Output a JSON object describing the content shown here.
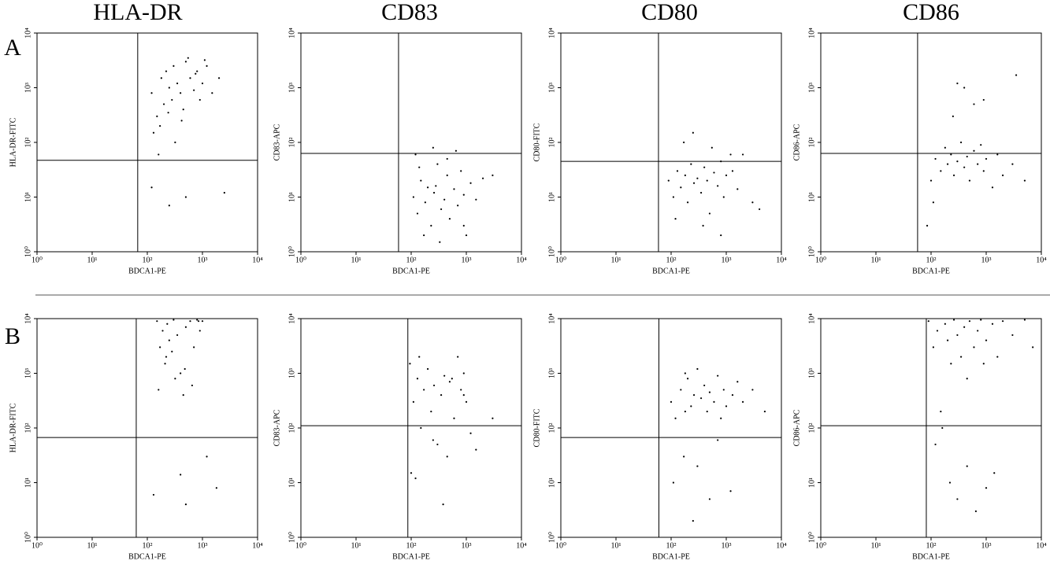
{
  "columns": [
    "HLA-DR",
    "CD83",
    "CD80",
    "CD86"
  ],
  "rows": [
    "A",
    "B"
  ],
  "chart_data": [
    {
      "type": "scatter",
      "xlabel": "BDCA1-PE",
      "ylabel": "HLA-DR-FITC",
      "log": true,
      "color": "#000000",
      "xlim": [
        1,
        10000
      ],
      "ylim": [
        1,
        10000
      ],
      "xticks": [
        {
          "value": 1,
          "label": "10⁰"
        },
        {
          "value": 10,
          "label": "10¹"
        },
        {
          "value": 100,
          "label": "10²"
        },
        {
          "value": 1000,
          "label": "10³"
        },
        {
          "value": 10000,
          "label": "10⁴"
        }
      ],
      "yticks": [
        {
          "value": 1,
          "label": "10⁰"
        },
        {
          "value": 10,
          "label": "10¹"
        },
        {
          "value": 100,
          "label": "10²"
        },
        {
          "value": 1000,
          "label": "10³"
        },
        {
          "value": 10000,
          "label": "10⁴"
        }
      ],
      "gate": {
        "x": 67,
        "y": 47
      },
      "x": [
        120,
        150,
        180,
        200,
        220,
        250,
        280,
        300,
        350,
        400,
        450,
        500,
        600,
        700,
        800,
        900,
        1000,
        1200,
        1500,
        2000,
        130,
        170,
        240,
        320,
        420,
        550,
        750,
        1100,
        250,
        500,
        2500,
        120,
        160
      ],
      "values": [
        800,
        300,
        1500,
        500,
        2000,
        1000,
        600,
        2500,
        1200,
        800,
        400,
        3000,
        1500,
        900,
        2000,
        600,
        1200,
        2500,
        800,
        1500,
        150,
        200,
        350,
        100,
        250,
        3500,
        1800,
        3200,
        7,
        10,
        12,
        15,
        60
      ]
    },
    {
      "type": "scatter",
      "xlabel": "BDCA1-PE",
      "ylabel": "CD83-APC",
      "log": true,
      "color": "#000000",
      "xlim": [
        1,
        10000
      ],
      "ylim": [
        1,
        10000
      ],
      "xticks": [
        {
          "value": 1,
          "label": "10⁰"
        },
        {
          "value": 10,
          "label": "10¹"
        },
        {
          "value": 100,
          "label": "10²"
        },
        {
          "value": 1000,
          "label": "10³"
        },
        {
          "value": 10000,
          "label": "10⁴"
        }
      ],
      "yticks": [
        {
          "value": 1,
          "label": "10⁰"
        },
        {
          "value": 10,
          "label": "10¹"
        },
        {
          "value": 100,
          "label": "10²"
        },
        {
          "value": 1000,
          "label": "10³"
        },
        {
          "value": 10000,
          "label": "10⁴"
        }
      ],
      "gate": {
        "x": 59,
        "y": 63
      },
      "x": [
        110,
        130,
        150,
        180,
        200,
        230,
        260,
        300,
        350,
        400,
        450,
        500,
        600,
        700,
        800,
        900,
        1000,
        1200,
        1500,
        2000,
        3000,
        120,
        170,
        250,
        330,
        450,
        650,
        900,
        140,
        280
      ],
      "values": [
        10,
        5,
        20,
        8,
        15,
        3,
        12,
        40,
        6,
        9,
        25,
        4,
        14,
        7,
        30,
        11,
        2,
        18,
        9,
        22,
        25,
        60,
        2,
        80,
        1.5,
        50,
        70,
        3,
        35,
        16
      ]
    },
    {
      "type": "scatter",
      "xlabel": "BDCA1-PE",
      "ylabel": "CD80-FITC",
      "log": true,
      "color": "#000000",
      "xlim": [
        1,
        10000
      ],
      "ylim": [
        1,
        10000
      ],
      "xticks": [
        {
          "value": 1,
          "label": "10⁰"
        },
        {
          "value": 10,
          "label": "10¹"
        },
        {
          "value": 100,
          "label": "10²"
        },
        {
          "value": 1000,
          "label": "10³"
        },
        {
          "value": 10000,
          "label": "10⁴"
        }
      ],
      "yticks": [
        {
          "value": 1,
          "label": "10⁰"
        },
        {
          "value": 10,
          "label": "10¹"
        },
        {
          "value": 100,
          "label": "10²"
        },
        {
          "value": 1000,
          "label": "10³"
        },
        {
          "value": 10000,
          "label": "10⁴"
        }
      ],
      "gate": {
        "x": 59,
        "y": 45
      },
      "x": [
        90,
        110,
        130,
        150,
        180,
        200,
        230,
        260,
        300,
        350,
        400,
        450,
        500,
        600,
        700,
        800,
        900,
        1000,
        1300,
        1600,
        2000,
        3000,
        4000,
        120,
        170,
        250,
        380,
        550,
        800,
        1200
      ],
      "values": [
        20,
        10,
        30,
        15,
        25,
        8,
        40,
        18,
        22,
        12,
        35,
        20,
        5,
        28,
        16,
        45,
        10,
        25,
        30,
        14,
        60,
        8,
        6,
        4,
        100,
        150,
        3,
        80,
        2,
        60
      ]
    },
    {
      "type": "scatter",
      "xlabel": "BDCA1-PE",
      "ylabel": "CD86-APC",
      "log": true,
      "color": "#000000",
      "xlim": [
        1,
        10000
      ],
      "ylim": [
        1,
        10000
      ],
      "xticks": [
        {
          "value": 1,
          "label": "10⁰"
        },
        {
          "value": 10,
          "label": "10¹"
        },
        {
          "value": 100,
          "label": "10²"
        },
        {
          "value": 1000,
          "label": "10³"
        },
        {
          "value": 10000,
          "label": "10⁴"
        }
      ],
      "yticks": [
        {
          "value": 1,
          "label": "10⁰"
        },
        {
          "value": 10,
          "label": "10¹"
        },
        {
          "value": 100,
          "label": "10²"
        },
        {
          "value": 1000,
          "label": "10³"
        },
        {
          "value": 10000,
          "label": "10⁴"
        }
      ],
      "gate": {
        "x": 57,
        "y": 63
      },
      "x": [
        85,
        100,
        120,
        150,
        180,
        200,
        230,
        260,
        300,
        350,
        400,
        450,
        500,
        600,
        700,
        800,
        900,
        1000,
        1300,
        1600,
        2000,
        3000,
        5000,
        110,
        250,
        400,
        600,
        900,
        300,
        3500
      ],
      "values": [
        3,
        20,
        50,
        30,
        80,
        40,
        60,
        25,
        45,
        100,
        35,
        55,
        20,
        70,
        40,
        90,
        30,
        50,
        15,
        60,
        25,
        40,
        20,
        8,
        300,
        1000,
        500,
        600,
        1200,
        1700
      ]
    },
    {
      "type": "scatter",
      "xlabel": "BDCA1-PE",
      "ylabel": "HLA-DR-FITC",
      "log": true,
      "color": "#000000",
      "xlim": [
        1,
        10000
      ],
      "ylim": [
        1,
        10000
      ],
      "xticks": [
        {
          "value": 1,
          "label": "10⁰"
        },
        {
          "value": 10,
          "label": "10¹"
        },
        {
          "value": 100,
          "label": "10²"
        },
        {
          "value": 1000,
          "label": "10³"
        },
        {
          "value": 10000,
          "label": "10⁴"
        }
      ],
      "yticks": [
        {
          "value": 1,
          "label": "10⁰"
        },
        {
          "value": 10,
          "label": "10¹"
        },
        {
          "value": 100,
          "label": "10²"
        },
        {
          "value": 1000,
          "label": "10³"
        },
        {
          "value": 10000,
          "label": "10⁴"
        }
      ],
      "gate": {
        "x": 63,
        "y": 67
      },
      "x": [
        150,
        170,
        190,
        210,
        230,
        250,
        280,
        300,
        350,
        400,
        450,
        500,
        600,
        700,
        800,
        900,
        1000,
        160,
        220,
        320,
        480,
        650,
        850,
        130,
        400,
        1200,
        1800,
        500
      ],
      "values": [
        9000,
        3000,
        6000,
        1500,
        8000,
        4000,
        2500,
        9500,
        5000,
        1000,
        400,
        7000,
        9000,
        3000,
        9500,
        6000,
        9000,
        500,
        2000,
        800,
        1200,
        600,
        9000,
        6,
        14,
        30,
        8,
        4
      ]
    },
    {
      "type": "scatter",
      "xlabel": "BDCA1-PE",
      "ylabel": "CD83-APC",
      "log": true,
      "color": "#000000",
      "xlim": [
        1,
        10000
      ],
      "ylim": [
        1,
        10000
      ],
      "xticks": [
        {
          "value": 1,
          "label": "10⁰"
        },
        {
          "value": 10,
          "label": "10¹"
        },
        {
          "value": 100,
          "label": "10²"
        },
        {
          "value": 1000,
          "label": "10³"
        },
        {
          "value": 10000,
          "label": "10⁴"
        }
      ],
      "yticks": [
        {
          "value": 1,
          "label": "10⁰"
        },
        {
          "value": 10,
          "label": "10¹"
        },
        {
          "value": 100,
          "label": "10²"
        },
        {
          "value": 1000,
          "label": "10³"
        },
        {
          "value": 10000,
          "label": "10⁴"
        }
      ],
      "gate": {
        "x": 87,
        "y": 110
      },
      "x": [
        95,
        110,
        130,
        150,
        170,
        200,
        230,
        260,
        300,
        350,
        400,
        450,
        500,
        600,
        700,
        800,
        900,
        1000,
        1200,
        1500,
        3000,
        100,
        140,
        250,
        380,
        550,
        120,
        900
      ],
      "values": [
        1500,
        300,
        800,
        100,
        500,
        1200,
        200,
        600,
        50,
        400,
        900,
        30,
        700,
        150,
        2000,
        500,
        1000,
        300,
        80,
        40,
        150,
        15,
        2000,
        60,
        4,
        800,
        12,
        400
      ]
    },
    {
      "type": "scatter",
      "xlabel": "BDCA1-PE",
      "ylabel": "CD80-FITC",
      "log": true,
      "color": "#000000",
      "xlim": [
        1,
        10000
      ],
      "ylim": [
        1,
        10000
      ],
      "xticks": [
        {
          "value": 1,
          "label": "10⁰"
        },
        {
          "value": 10,
          "label": "10¹"
        },
        {
          "value": 100,
          "label": "10²"
        },
        {
          "value": 1000,
          "label": "10³"
        },
        {
          "value": 10000,
          "label": "10⁴"
        }
      ],
      "yticks": [
        {
          "value": 1,
          "label": "10⁰"
        },
        {
          "value": 10,
          "label": "10¹"
        },
        {
          "value": 100,
          "label": "10²"
        },
        {
          "value": 1000,
          "label": "10³"
        },
        {
          "value": 10000,
          "label": "10⁴"
        }
      ],
      "gate": {
        "x": 60,
        "y": 67
      },
      "x": [
        100,
        120,
        150,
        180,
        200,
        230,
        260,
        300,
        350,
        400,
        450,
        500,
        600,
        700,
        800,
        900,
        1000,
        1300,
        1600,
        2000,
        3000,
        5000,
        110,
        170,
        250,
        300,
        500,
        700,
        1200,
        180
      ],
      "values": [
        300,
        150,
        500,
        200,
        800,
        250,
        400,
        1200,
        350,
        600,
        200,
        450,
        300,
        900,
        150,
        500,
        250,
        400,
        700,
        300,
        500,
        200,
        10,
        30,
        2,
        20,
        5,
        60,
        7,
        1000
      ]
    },
    {
      "type": "scatter",
      "xlabel": "BDCA1-PE",
      "ylabel": "CD86-APC",
      "log": true,
      "color": "#000000",
      "xlim": [
        1,
        10000
      ],
      "ylim": [
        1,
        10000
      ],
      "xticks": [
        {
          "value": 1,
          "label": "10⁰"
        },
        {
          "value": 10,
          "label": "10¹"
        },
        {
          "value": 100,
          "label": "10²"
        },
        {
          "value": 1000,
          "label": "10³"
        },
        {
          "value": 10000,
          "label": "10⁴"
        }
      ],
      "yticks": [
        {
          "value": 1,
          "label": "10⁰"
        },
        {
          "value": 10,
          "label": "10¹"
        },
        {
          "value": 100,
          "label": "10²"
        },
        {
          "value": 1000,
          "label": "10³"
        },
        {
          "value": 10000,
          "label": "10⁴"
        }
      ],
      "gate": {
        "x": 82,
        "y": 110
      },
      "x": [
        90,
        110,
        130,
        150,
        180,
        200,
        230,
        260,
        300,
        350,
        400,
        450,
        500,
        600,
        700,
        800,
        900,
        1000,
        1300,
        1600,
        2000,
        3000,
        5000,
        7000,
        120,
        160,
        220,
        300,
        450,
        650,
        1000,
        1400
      ],
      "values": [
        9000,
        3000,
        6000,
        200,
        8000,
        4000,
        1500,
        9500,
        5000,
        2000,
        7000,
        800,
        9000,
        3000,
        6000,
        9500,
        1500,
        4000,
        8000,
        2000,
        9000,
        5000,
        9500,
        3000,
        50,
        100,
        10,
        5,
        20,
        3,
        8,
        15
      ]
    }
  ]
}
